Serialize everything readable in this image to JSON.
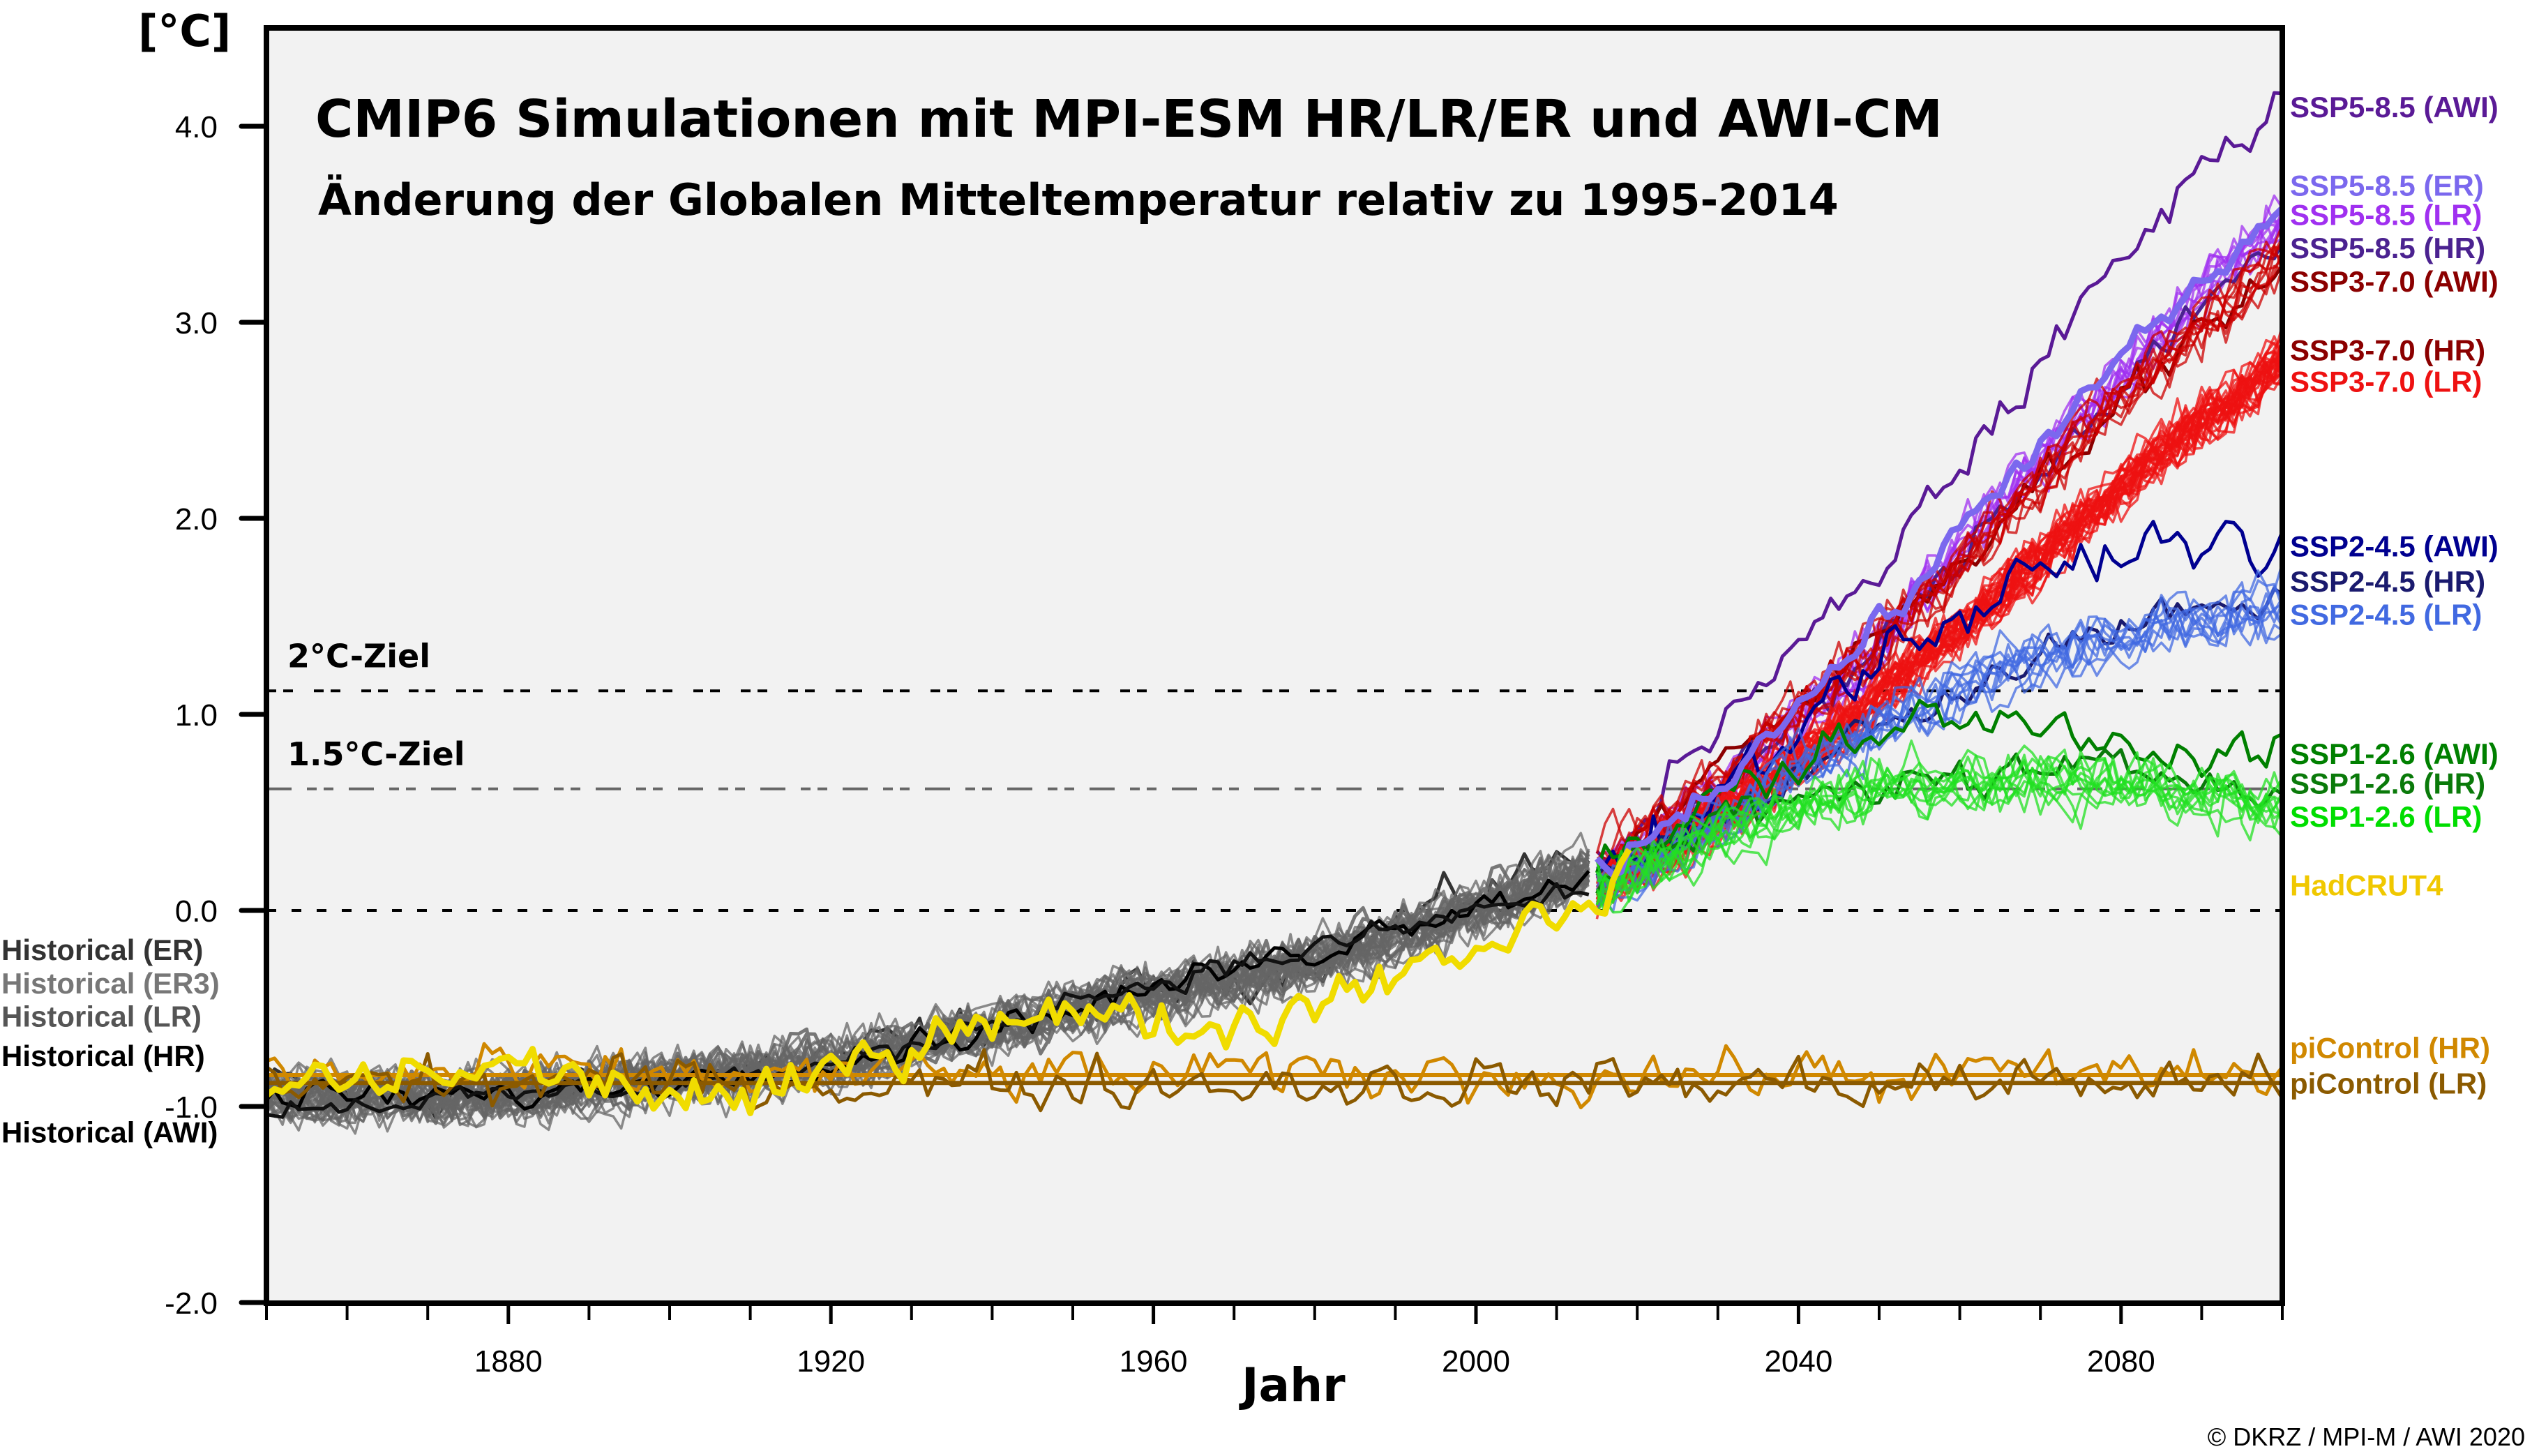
{
  "chart_data": {
    "type": "line",
    "title": "CMIP6 Simulationen mit MPI-ESM HR/LR/ER und AWI-CM",
    "subtitle": "Änderung der Globalen Mitteltemperatur relativ zu 1995-2014",
    "xlabel": "Jahr",
    "ylabel": "[°C]",
    "xlim": [
      1850,
      2100
    ],
    "ylim": [
      -2.0,
      4.5
    ],
    "x_ticks_major": [
      1880,
      1920,
      1960,
      2000,
      2040,
      2080
    ],
    "x_tick_labels": [
      "1880",
      "1920",
      "1960",
      "2000",
      "2040",
      "2080"
    ],
    "x_minor_tick_step": 10,
    "y_ticks": [
      4.0,
      3.0,
      2.0,
      1.0,
      0.0,
      -1.0,
      -2.0
    ],
    "y_tick_labels": [
      "4.0",
      "3.0",
      "2.0",
      "1.0",
      "0.0",
      "-1.0",
      "-2.0"
    ],
    "grid": false,
    "background": "#f2f2f2",
    "reference_lines": [
      {
        "name": "2°C-Ziel",
        "label": "2°C-Ziel",
        "value": 1.12,
        "style": "dashed-double",
        "color": "#000000"
      },
      {
        "name": "1.5°C-Ziel",
        "label": "1.5°C-Ziel",
        "value": 0.62,
        "style": "dash-dot",
        "color": "#666666"
      },
      {
        "name": "zero",
        "label": "",
        "value": 0.0,
        "style": "dashed",
        "color": "#000000"
      }
    ],
    "legend_placement": "right",
    "series": [
      {
        "name": "SSP5-8.5 (AWI)",
        "color": "#5a1a96",
        "members": 1,
        "noise": 0.1,
        "anchors": [
          [
            2015,
            0.25
          ],
          [
            2030,
            0.9
          ],
          [
            2050,
            1.75
          ],
          [
            2070,
            2.8
          ],
          [
            2085,
            3.55
          ],
          [
            2100,
            4.2
          ]
        ]
      },
      {
        "name": "SSP5-8.5 (ER)",
        "color": "#7b68ee",
        "members": 1,
        "noise": 0.06,
        "thick": true,
        "anchors": [
          [
            2015,
            0.2
          ],
          [
            2030,
            0.65
          ],
          [
            2050,
            1.45
          ],
          [
            2070,
            2.4
          ],
          [
            2085,
            3.0
          ],
          [
            2100,
            3.55
          ]
        ]
      },
      {
        "name": "SSP5-8.5 (LR)",
        "color": "#a030f0",
        "members": 10,
        "noise": 0.12,
        "anchors": [
          [
            2015,
            0.15
          ],
          [
            2030,
            0.6
          ],
          [
            2050,
            1.35
          ],
          [
            2070,
            2.3
          ],
          [
            2085,
            2.95
          ],
          [
            2100,
            3.55
          ]
        ]
      },
      {
        "name": "SSP5-8.5 (HR)",
        "color": "#4b2290",
        "members": 1,
        "noise": 0.08,
        "anchors": [
          [
            2015,
            0.15
          ],
          [
            2030,
            0.6
          ],
          [
            2050,
            1.35
          ],
          [
            2070,
            2.25
          ],
          [
            2085,
            2.9
          ],
          [
            2100,
            3.45
          ]
        ]
      },
      {
        "name": "SSP3-7.0 (AWI)",
        "color": "#8b0000",
        "members": 1,
        "noise": 0.08,
        "anchors": [
          [
            2015,
            0.2
          ],
          [
            2030,
            0.7
          ],
          [
            2050,
            1.4
          ],
          [
            2070,
            2.2
          ],
          [
            2085,
            2.8
          ],
          [
            2100,
            3.3
          ]
        ]
      },
      {
        "name": "SSP3-7.0 (HR)",
        "color": "#cc0000",
        "members": 10,
        "noise": 0.12,
        "anchors": [
          [
            2015,
            0.2
          ],
          [
            2030,
            0.65
          ],
          [
            2050,
            1.35
          ],
          [
            2070,
            2.2
          ],
          [
            2085,
            2.8
          ],
          [
            2100,
            3.35
          ]
        ]
      },
      {
        "name": "SSP3-7.0 (LR)",
        "color": "#ee1111",
        "members": 30,
        "noise": 0.11,
        "anchors": [
          [
            2015,
            0.1
          ],
          [
            2030,
            0.45
          ],
          [
            2050,
            1.1
          ],
          [
            2070,
            1.8
          ],
          [
            2085,
            2.35
          ],
          [
            2100,
            2.8
          ]
        ]
      },
      {
        "name": "SSP2-4.5 (AWI)",
        "color": "#000090",
        "members": 1,
        "noise": 0.1,
        "anchors": [
          [
            2015,
            0.2
          ],
          [
            2030,
            0.6
          ],
          [
            2050,
            1.3
          ],
          [
            2070,
            1.7
          ],
          [
            2085,
            1.9
          ],
          [
            2100,
            1.85
          ]
        ]
      },
      {
        "name": "SSP2-4.5 (HR)",
        "color": "#1a1a6e",
        "members": 1,
        "noise": 0.07,
        "anchors": [
          [
            2015,
            0.15
          ],
          [
            2030,
            0.45
          ],
          [
            2050,
            0.95
          ],
          [
            2070,
            1.3
          ],
          [
            2085,
            1.5
          ],
          [
            2100,
            1.55
          ]
        ]
      },
      {
        "name": "SSP2-4.5 (LR)",
        "color": "#4169e1",
        "members": 10,
        "noise": 0.12,
        "anchors": [
          [
            2015,
            0.1
          ],
          [
            2030,
            0.45
          ],
          [
            2050,
            0.95
          ],
          [
            2070,
            1.3
          ],
          [
            2085,
            1.45
          ],
          [
            2100,
            1.55
          ]
        ]
      },
      {
        "name": "SSP1-2.6 (AWI)",
        "color": "#008000",
        "members": 1,
        "noise": 0.1,
        "anchors": [
          [
            2015,
            0.2
          ],
          [
            2030,
            0.55
          ],
          [
            2050,
            0.95
          ],
          [
            2070,
            0.95
          ],
          [
            2085,
            0.85
          ],
          [
            2100,
            0.8
          ]
        ]
      },
      {
        "name": "SSP1-2.6 (HR)",
        "color": "#0a7a0a",
        "members": 1,
        "noise": 0.08,
        "anchors": [
          [
            2015,
            0.15
          ],
          [
            2030,
            0.45
          ],
          [
            2050,
            0.65
          ],
          [
            2070,
            0.7
          ],
          [
            2085,
            0.7
          ],
          [
            2100,
            0.65
          ]
        ]
      },
      {
        "name": "SSP1-2.6 (LR)",
        "color": "#22e022",
        "members": 10,
        "noise": 0.12,
        "anchors": [
          [
            2015,
            0.1
          ],
          [
            2030,
            0.4
          ],
          [
            2050,
            0.65
          ],
          [
            2070,
            0.65
          ],
          [
            2085,
            0.6
          ],
          [
            2100,
            0.55
          ]
        ]
      },
      {
        "name": "Historical (ER)",
        "color": "#333333",
        "members": 1,
        "noise": 0.09,
        "anchors": [
          [
            1850,
            -0.9
          ],
          [
            1880,
            -0.95
          ],
          [
            1920,
            -0.75
          ],
          [
            1950,
            -0.5
          ],
          [
            1980,
            -0.25
          ],
          [
            2000,
            0.1
          ],
          [
            2014,
            0.3
          ]
        ]
      },
      {
        "name": "Historical (ER3)",
        "color": "#777777",
        "members": 3,
        "noise": 0.1,
        "anchors": [
          [
            1850,
            -0.9
          ],
          [
            1880,
            -0.95
          ],
          [
            1920,
            -0.75
          ],
          [
            1950,
            -0.5
          ],
          [
            1980,
            -0.25
          ],
          [
            2000,
            0.05
          ],
          [
            2014,
            0.2
          ]
        ]
      },
      {
        "name": "Historical (LR)",
        "color": "#666666",
        "members": 30,
        "noise": 0.11,
        "anchors": [
          [
            1850,
            -0.95
          ],
          [
            1880,
            -0.95
          ],
          [
            1920,
            -0.78
          ],
          [
            1950,
            -0.5
          ],
          [
            1970,
            -0.35
          ],
          [
            1990,
            -0.15
          ],
          [
            2000,
            0.0
          ],
          [
            2014,
            0.2
          ]
        ]
      },
      {
        "name": "Historical (HR)",
        "color": "#000000",
        "members": 1,
        "noise": 0.06,
        "anchors": [
          [
            1850,
            -0.95
          ],
          [
            1880,
            -0.95
          ],
          [
            1920,
            -0.78
          ],
          [
            1950,
            -0.5
          ],
          [
            1980,
            -0.2
          ],
          [
            2000,
            0.05
          ],
          [
            2014,
            0.15
          ]
        ]
      },
      {
        "name": "Historical (AWI)",
        "color": "#111111",
        "members": 1,
        "noise": 0.05,
        "anchors": [
          [
            1850,
            -1.0
          ],
          [
            1880,
            -0.95
          ],
          [
            1920,
            -0.8
          ],
          [
            1950,
            -0.45
          ],
          [
            1980,
            -0.2
          ],
          [
            2000,
            0.0
          ],
          [
            2014,
            0.1
          ]
        ]
      },
      {
        "name": "HadCRUT4",
        "color": "#f0dc00",
        "members": 1,
        "noise": 0.1,
        "thick": true,
        "anchors": [
          [
            1850,
            -0.9
          ],
          [
            1880,
            -0.8
          ],
          [
            1910,
            -1.0
          ],
          [
            1940,
            -0.5
          ],
          [
            1970,
            -0.6
          ],
          [
            1990,
            -0.3
          ],
          [
            2005,
            -0.1
          ],
          [
            2019,
            0.2
          ]
        ]
      },
      {
        "name": "piControl (HR)",
        "color": "#d08800",
        "members": 1,
        "noise": 0.1,
        "flat_mean": true,
        "anchors": [
          [
            1850,
            -0.84
          ],
          [
            2100,
            -0.84
          ]
        ]
      },
      {
        "name": "piControl (LR)",
        "color": "#8b5a00",
        "members": 1,
        "noise": 0.1,
        "flat_mean": true,
        "anchors": [
          [
            1850,
            -0.88
          ],
          [
            2100,
            -0.88
          ]
        ]
      }
    ],
    "legend_right": [
      {
        "label": "SSP5-8.5 (AWI)",
        "color": "#5a1a96",
        "y": 4.1
      },
      {
        "label": "SSP5-8.5 (ER)",
        "color": "#7b68ee",
        "y": 3.7
      },
      {
        "label": "SSP5-8.5 (LR)",
        "color": "#a030f0",
        "y": 3.55
      },
      {
        "label": "SSP5-8.5 (HR)",
        "color": "#4b2290",
        "y": 3.38
      },
      {
        "label": "SSP3-7.0 (AWI)",
        "color": "#8b0000",
        "y": 3.21
      },
      {
        "label": "SSP3-7.0 (HR)",
        "color": "#8b0000",
        "y": 2.86
      },
      {
        "label": "SSP3-7.0 (LR)",
        "color": "#ee1111",
        "y": 2.7
      },
      {
        "label": "SSP2-4.5 (AWI)",
        "color": "#000090",
        "y": 1.86
      },
      {
        "label": "SSP2-4.5 (HR)",
        "color": "#1a1a6e",
        "y": 1.68
      },
      {
        "label": "SSP2-4.5 (LR)",
        "color": "#4169e1",
        "y": 1.51
      },
      {
        "label": "SSP1-2.6 (AWI)",
        "color": "#008000",
        "y": 0.8
      },
      {
        "label": "SSP1-2.6 (HR)",
        "color": "#0a7a0a",
        "y": 0.65
      },
      {
        "label": "SSP1-2.6 (LR)",
        "color": "#00dd00",
        "y": 0.48
      },
      {
        "label": "HadCRUT4",
        "color": "#f0c800",
        "y": 0.13
      },
      {
        "label": "piControl (HR)",
        "color": "#d08800",
        "y": -0.7
      },
      {
        "label": "piControl (LR)",
        "color": "#8b5a00",
        "y": -0.88
      }
    ],
    "legend_left": [
      {
        "label": "Historical (ER)",
        "color": "#333333",
        "y": -0.2
      },
      {
        "label": "Historical (ER3)",
        "color": "#777777",
        "y": -0.37
      },
      {
        "label": "Historical (LR)",
        "color": "#555555",
        "y": -0.54
      },
      {
        "label": "Historical (HR)",
        "color": "#000000",
        "y": -0.74
      },
      {
        "label": "Historical (AWI)",
        "color": "#000000",
        "y": -1.13
      }
    ]
  },
  "copyright": "© DKRZ / MPI-M / AWI 2020"
}
